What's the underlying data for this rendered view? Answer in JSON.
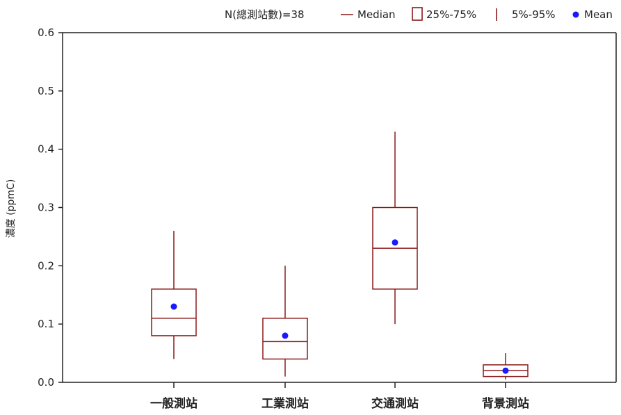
{
  "chart_data": {
    "type": "box",
    "title": "",
    "xlabel": "",
    "ylabel": "濃度 (ppmC)",
    "ylim": [
      0,
      0.6
    ],
    "yticks": [
      "0.0",
      "0.1",
      "0.2",
      "0.3",
      "0.4",
      "0.5",
      "0.6"
    ],
    "categories": [
      "一般測站",
      "工業測站",
      "交通測站",
      "背景測站"
    ],
    "boxes": [
      {
        "p5": 0.04,
        "q1": 0.08,
        "median": 0.11,
        "q3": 0.16,
        "p95": 0.26,
        "mean": 0.13
      },
      {
        "p5": 0.01,
        "q1": 0.04,
        "median": 0.07,
        "q3": 0.11,
        "p95": 0.2,
        "mean": 0.08
      },
      {
        "p5": 0.1,
        "q1": 0.16,
        "median": 0.23,
        "q3": 0.3,
        "p95": 0.43,
        "mean": 0.24
      },
      {
        "p5": 0.005,
        "q1": 0.01,
        "median": 0.02,
        "q3": 0.03,
        "p95": 0.05,
        "mean": 0.02
      }
    ],
    "legend": {
      "n_label": "N(總測站數)=38",
      "median_label": "Median",
      "iqr_label": "25%-75%",
      "whisker_label": "5%-95%",
      "mean_label": "Mean",
      "position": "top-right"
    },
    "colors": {
      "box": "#8b1a1a",
      "mean": "#1a1aff",
      "axis": "#222222"
    }
  }
}
